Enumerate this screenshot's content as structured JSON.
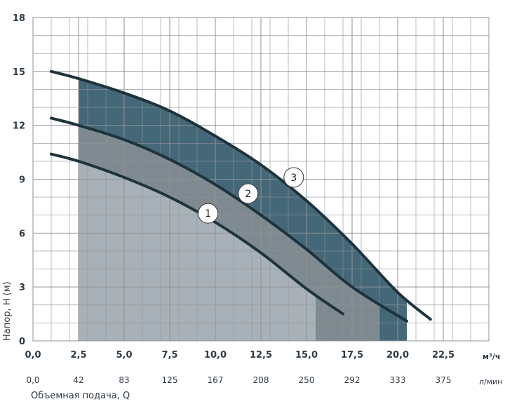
{
  "chart_data": {
    "type": "line",
    "title": "",
    "xlabel": "Объемная подача, Q",
    "ylabel": "Напор, H (м)",
    "x_unit": "м³/ч",
    "x2_unit": "л/мин",
    "xlim": [
      0,
      25
    ],
    "ylim": [
      0,
      18
    ],
    "x_ticks": [
      "0,0",
      "2,5",
      "5,0",
      "7,5",
      "10,0",
      "12,5",
      "15,0",
      "17,5",
      "20,0",
      "22,5"
    ],
    "x2_ticks": [
      "0,0",
      "42",
      "83",
      "125",
      "167",
      "208",
      "250",
      "292",
      "333",
      "375"
    ],
    "y_ticks": [
      "0",
      "3",
      "6",
      "9",
      "12",
      "15",
      "18"
    ],
    "grid": true,
    "operating_range": [
      {
        "series": "1",
        "x_start": 2.5,
        "x_end": 15.5
      },
      {
        "series": "2",
        "x_start": 2.5,
        "x_end": 19.0
      },
      {
        "series": "3",
        "x_start": 2.5,
        "x_end": 20.5
      }
    ],
    "series": [
      {
        "name": "1",
        "label_at": [
          9.6,
          7.1
        ],
        "x": [
          1.0,
          2.5,
          5.0,
          7.5,
          10.0,
          12.5,
          15.0,
          17.0
        ],
        "y": [
          10.4,
          10.0,
          9.1,
          8.0,
          6.6,
          4.9,
          2.9,
          1.5
        ]
      },
      {
        "name": "2",
        "label_at": [
          11.8,
          8.2
        ],
        "x": [
          1.0,
          2.5,
          5.0,
          7.5,
          10.0,
          12.5,
          15.0,
          17.5,
          20.5
        ],
        "y": [
          12.4,
          12.0,
          11.2,
          10.1,
          8.7,
          7.0,
          5.1,
          3.0,
          1.1
        ]
      },
      {
        "name": "3",
        "label_at": [
          14.3,
          9.1
        ],
        "x": [
          1.0,
          2.5,
          5.0,
          7.5,
          10.0,
          12.5,
          15.0,
          17.5,
          20.0,
          21.8
        ],
        "y": [
          15.0,
          14.6,
          13.8,
          12.8,
          11.4,
          9.8,
          7.8,
          5.4,
          2.7,
          1.2
        ]
      }
    ]
  },
  "colors": {
    "grid": "#8c9299",
    "curve": "#1d333d",
    "fill_1": "#a8b1b7",
    "fill_2": "#7f8a90",
    "fill_3": "#456878",
    "text": "#2f3a44"
  }
}
